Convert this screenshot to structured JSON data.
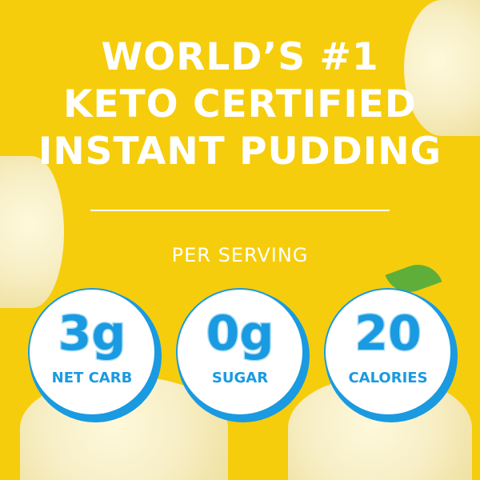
{
  "headline": [
    "WORLD’S #1",
    "KETO CERTIFIED",
    "INSTANT PUDDING"
  ],
  "subhead": "PER SERVING",
  "badges": [
    {
      "value": "3g",
      "label": "NET CARB"
    },
    {
      "value": "0g",
      "label": "SUGAR"
    },
    {
      "value": "20",
      "label": "CALORIES"
    }
  ],
  "colors": {
    "background": "#f6cd0c",
    "accent": "#1a9ae0"
  }
}
